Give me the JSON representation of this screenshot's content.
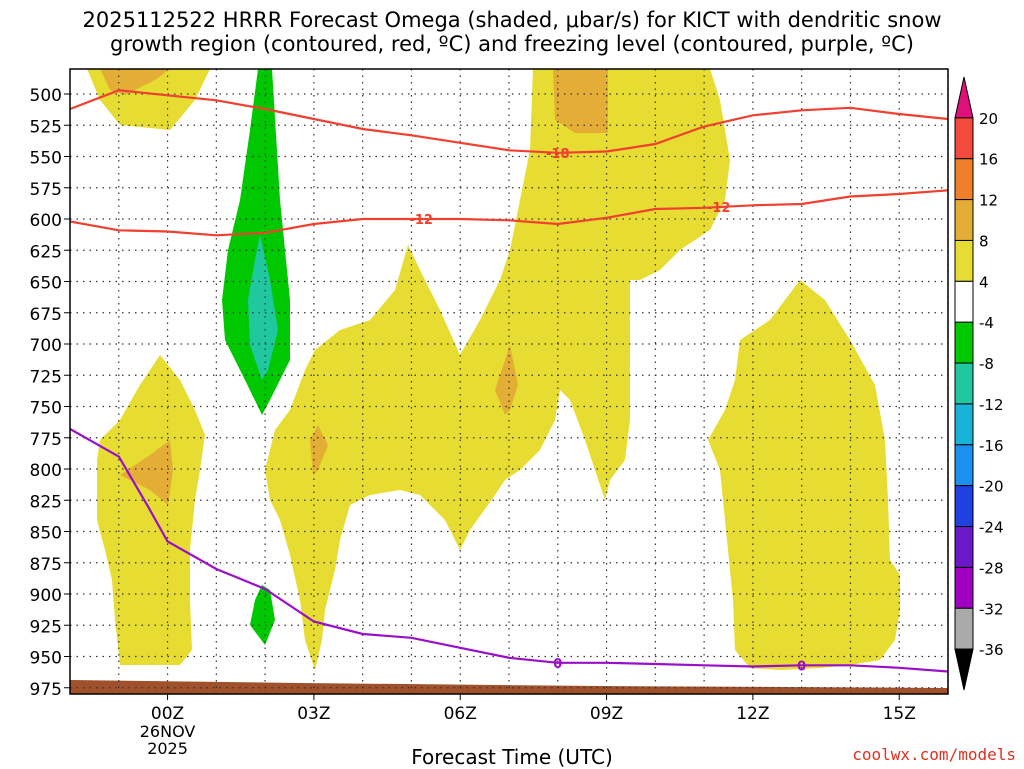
{
  "title_line1": "2025112522 HRRR Forecast Omega (shaded, μbar/s) for KICT with dendritic snow",
  "title_line2": "growth region (contoured, red, ºC) and freezing level (contoured, purple, ºC)",
  "x_axis_label": "Forecast Time (UTC)",
  "credit": "coolwx.com/models",
  "chart_data": {
    "type": "time-height cross section",
    "y_axis": {
      "ticks": [
        500,
        525,
        550,
        575,
        600,
        625,
        650,
        675,
        700,
        725,
        750,
        775,
        800,
        825,
        850,
        875,
        900,
        925,
        950,
        975
      ],
      "range": [
        480,
        980
      ]
    },
    "x_axis": {
      "ticks": [
        {
          "hour": 0,
          "label": "00Z",
          "extra": [
            "26NOV",
            "2025"
          ]
        },
        {
          "hour": 3,
          "label": "03Z"
        },
        {
          "hour": 6,
          "label": "06Z"
        },
        {
          "hour": 9,
          "label": "09Z"
        },
        {
          "hour": 12,
          "label": "12Z"
        },
        {
          "hour": 15,
          "label": "15Z"
        }
      ],
      "range": [
        -2,
        16
      ]
    },
    "colorbar": {
      "labels": [
        "20",
        "16",
        "12",
        "8",
        "4",
        "-4",
        "-8",
        "-12",
        "-16",
        "-20",
        "-24",
        "-28",
        "-32",
        "-36"
      ],
      "colors": [
        "#e0107a",
        "#f24a3c",
        "#ef7f28",
        "#e4ae36",
        "#e6dc32",
        "#ffffff",
        "#00c800",
        "#20c8a0",
        "#18b4d8",
        "#1a90f0",
        "#2040e0",
        "#6a18c8",
        "#a000c0",
        "#aaaaaa",
        "#000000"
      ]
    },
    "contours": {
      "dgz_minus18": {
        "label": "-18",
        "color": "#f04030",
        "points": [
          [
            -2,
            512
          ],
          [
            -1,
            497
          ],
          [
            0,
            501
          ],
          [
            1,
            505
          ],
          [
            2,
            512
          ],
          [
            3,
            520
          ],
          [
            4,
            528
          ],
          [
            5,
            533
          ],
          [
            6,
            539
          ],
          [
            7,
            545
          ],
          [
            8,
            547
          ],
          [
            9,
            546
          ],
          [
            10,
            540
          ],
          [
            11,
            526
          ],
          [
            12,
            517
          ],
          [
            13,
            513
          ],
          [
            14,
            511
          ],
          [
            15,
            516
          ],
          [
            16,
            520
          ]
        ]
      },
      "dgz_minus12": {
        "label": "-12",
        "color": "#f04030",
        "points": [
          [
            -2,
            602
          ],
          [
            -1,
            609
          ],
          [
            0,
            610
          ],
          [
            1,
            613
          ],
          [
            2,
            611
          ],
          [
            3,
            604
          ],
          [
            4,
            600
          ],
          [
            5,
            600
          ],
          [
            6,
            600
          ],
          [
            7,
            601
          ],
          [
            8,
            604
          ],
          [
            9,
            599
          ],
          [
            10,
            592
          ],
          [
            11,
            591
          ],
          [
            12,
            589
          ],
          [
            13,
            588
          ],
          [
            14,
            582
          ],
          [
            15,
            580
          ],
          [
            16,
            577
          ]
        ]
      },
      "freezing_level": {
        "label": "0",
        "color": "#9a10c8",
        "points": [
          [
            -2,
            768
          ],
          [
            -1,
            790
          ],
          [
            -0.4,
            830
          ],
          [
            0,
            858
          ],
          [
            1,
            880
          ],
          [
            2,
            896
          ],
          [
            3,
            922
          ],
          [
            4,
            932
          ],
          [
            5,
            935
          ],
          [
            6,
            943
          ],
          [
            7,
            951
          ],
          [
            8,
            955
          ],
          [
            9,
            955
          ],
          [
            10,
            956
          ],
          [
            11,
            957
          ],
          [
            12,
            958
          ],
          [
            13,
            957
          ],
          [
            14,
            957
          ],
          [
            15,
            959
          ],
          [
            16,
            962
          ]
        ]
      }
    },
    "terrain_color": "#a0502a"
  }
}
